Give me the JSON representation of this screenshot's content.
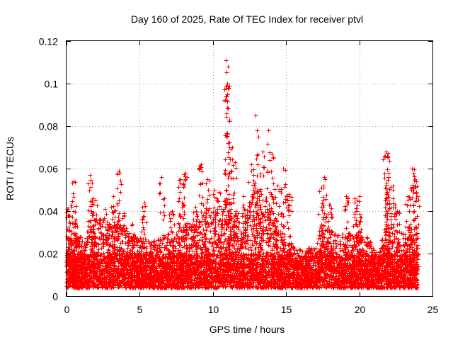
{
  "chart_data": {
    "type": "scatter",
    "title": "Day 160 of 2025, Rate Of TEC Index for receiver ptvl",
    "xlabel": "GPS time / hours",
    "ylabel": "ROTI / TECUs",
    "xlim": [
      0,
      25
    ],
    "ylim": [
      0,
      0.12
    ],
    "xticks": [
      0,
      5,
      10,
      15,
      20,
      25
    ],
    "xtick_labels": [
      "0",
      "5",
      "10",
      "15",
      "20",
      "25"
    ],
    "yticks": [
      0,
      0.02,
      0.04,
      0.06,
      0.08,
      0.1,
      0.12
    ],
    "ytick_labels": [
      "0",
      "0.02",
      "0.04",
      "0.06",
      "0.08",
      "0.1",
      "0.12"
    ],
    "grid": true,
    "marker": "plus",
    "series": [
      {
        "name": "ROTI",
        "color": "#ff0000",
        "note": "dense cloud ~0.005-0.035 over 0-24 h; peaks listed below",
        "points": [
          [
            0.1,
            0.041
          ],
          [
            0.3,
            0.043
          ],
          [
            0.5,
            0.054
          ],
          [
            0.6,
            0.035
          ],
          [
            0.9,
            0.028
          ],
          [
            1.6,
            0.057
          ],
          [
            1.8,
            0.046
          ],
          [
            2.0,
            0.045
          ],
          [
            2.6,
            0.041
          ],
          [
            3.2,
            0.047
          ],
          [
            3.6,
            0.059
          ],
          [
            3.9,
            0.039
          ],
          [
            4.5,
            0.034
          ],
          [
            5.3,
            0.044
          ],
          [
            6.5,
            0.056
          ],
          [
            7.2,
            0.04
          ],
          [
            7.8,
            0.055
          ],
          [
            8.1,
            0.058
          ],
          [
            8.8,
            0.042
          ],
          [
            9.2,
            0.062
          ],
          [
            9.6,
            0.055
          ],
          [
            10.1,
            0.05
          ],
          [
            10.4,
            0.049
          ],
          [
            10.9,
            0.111
          ],
          [
            11.0,
            0.1
          ],
          [
            11.0,
            0.095
          ],
          [
            11.1,
            0.083
          ],
          [
            11.3,
            0.07
          ],
          [
            11.5,
            0.063
          ],
          [
            12.1,
            0.047
          ],
          [
            12.6,
            0.062
          ],
          [
            12.9,
            0.085
          ],
          [
            13.1,
            0.075
          ],
          [
            13.4,
            0.068
          ],
          [
            13.8,
            0.078
          ],
          [
            14.0,
            0.067
          ],
          [
            14.4,
            0.052
          ],
          [
            14.8,
            0.06
          ],
          [
            15.2,
            0.048
          ],
          [
            17.4,
            0.051
          ],
          [
            17.6,
            0.056
          ],
          [
            18.0,
            0.043
          ],
          [
            19.1,
            0.047
          ],
          [
            19.7,
            0.046
          ],
          [
            20.0,
            0.047
          ],
          [
            21.8,
            0.068
          ],
          [
            21.9,
            0.066
          ],
          [
            22.0,
            0.058
          ],
          [
            22.3,
            0.052
          ],
          [
            22.6,
            0.04
          ],
          [
            23.3,
            0.047
          ],
          [
            23.6,
            0.06
          ],
          [
            23.8,
            0.055
          ],
          [
            23.9,
            0.049
          ]
        ]
      }
    ]
  }
}
